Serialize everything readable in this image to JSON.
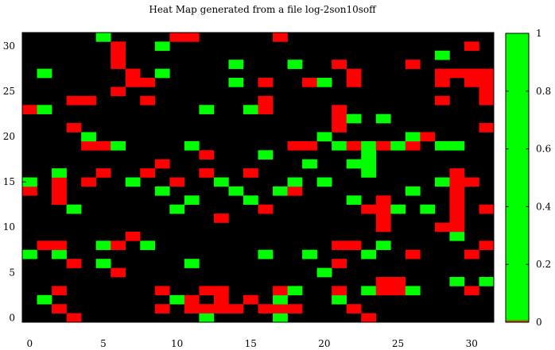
{
  "chart_data": {
    "type": "heatmap",
    "title": "Heat Map generated from a file log-2son10soff",
    "xlabel": "",
    "ylabel": "",
    "x_range": [
      -0.5,
      31.5
    ],
    "y_range": [
      -0.5,
      31.5
    ],
    "x_ticks": [
      0,
      5,
      10,
      15,
      20,
      25,
      30
    ],
    "y_ticks": [
      0,
      5,
      10,
      15,
      20,
      25,
      30
    ],
    "colorbar": {
      "range": [
        0,
        1
      ],
      "ticks": [
        0,
        0.2,
        0.4,
        0.6,
        0.8,
        1
      ],
      "colors": {
        "zero": "#000000",
        "red": "#ff0000",
        "green": "#00ff00"
      }
    },
    "value_legend": {
      "0": "none",
      "1": "red",
      "2": "green"
    },
    "grid": [
      [
        0,
        0,
        0,
        1,
        0,
        0,
        0,
        0,
        0,
        0,
        0,
        0,
        2,
        0,
        0,
        0,
        0,
        2,
        0,
        0,
        0,
        0,
        0,
        1,
        0,
        0,
        0,
        0,
        0,
        0,
        0,
        0
      ],
      [
        0,
        0,
        1,
        0,
        0,
        0,
        0,
        0,
        0,
        1,
        0,
        1,
        1,
        1,
        1,
        0,
        1,
        1,
        1,
        0,
        0,
        0,
        1,
        0,
        0,
        0,
        0,
        0,
        0,
        0,
        0,
        0
      ],
      [
        0,
        2,
        0,
        0,
        0,
        0,
        0,
        0,
        0,
        0,
        2,
        1,
        0,
        1,
        0,
        1,
        0,
        2,
        0,
        0,
        0,
        2,
        0,
        0,
        0,
        0,
        0,
        0,
        0,
        0,
        0,
        0
      ],
      [
        0,
        0,
        1,
        0,
        0,
        0,
        0,
        0,
        0,
        1,
        0,
        0,
        1,
        1,
        0,
        0,
        0,
        1,
        2,
        0,
        0,
        1,
        0,
        2,
        1,
        1,
        2,
        0,
        0,
        0,
        1,
        0
      ],
      [
        0,
        0,
        0,
        0,
        0,
        0,
        0,
        0,
        0,
        0,
        0,
        0,
        0,
        0,
        0,
        0,
        0,
        0,
        0,
        0,
        0,
        0,
        0,
        0,
        1,
        1,
        0,
        0,
        0,
        2,
        0,
        2
      ],
      [
        0,
        0,
        0,
        0,
        0,
        0,
        1,
        0,
        0,
        0,
        0,
        0,
        0,
        0,
        0,
        0,
        0,
        0,
        0,
        0,
        2,
        0,
        0,
        0,
        0,
        0,
        0,
        0,
        0,
        0,
        0,
        0
      ],
      [
        0,
        0,
        0,
        1,
        0,
        2,
        0,
        0,
        0,
        0,
        0,
        2,
        0,
        0,
        0,
        0,
        0,
        0,
        0,
        0,
        0,
        1,
        0,
        0,
        0,
        0,
        0,
        0,
        0,
        0,
        0,
        0
      ],
      [
        2,
        0,
        2,
        0,
        0,
        0,
        0,
        0,
        0,
        0,
        0,
        0,
        0,
        0,
        0,
        0,
        2,
        0,
        0,
        2,
        0,
        0,
        0,
        2,
        0,
        0,
        1,
        0,
        0,
        0,
        1,
        0
      ],
      [
        0,
        1,
        1,
        0,
        0,
        2,
        1,
        0,
        2,
        0,
        0,
        0,
        0,
        0,
        0,
        0,
        0,
        0,
        0,
        0,
        0,
        1,
        1,
        0,
        2,
        0,
        0,
        0,
        0,
        0,
        0,
        1
      ],
      [
        0,
        0,
        0,
        0,
        0,
        0,
        0,
        1,
        0,
        0,
        0,
        0,
        0,
        0,
        0,
        0,
        0,
        0,
        0,
        0,
        0,
        0,
        0,
        0,
        0,
        0,
        0,
        0,
        0,
        2,
        0,
        0
      ],
      [
        0,
        0,
        0,
        0,
        0,
        0,
        0,
        0,
        0,
        0,
        0,
        0,
        0,
        0,
        0,
        0,
        0,
        0,
        0,
        0,
        0,
        0,
        0,
        0,
        1,
        0,
        0,
        0,
        1,
        1,
        0,
        0
      ],
      [
        0,
        0,
        0,
        0,
        0,
        0,
        0,
        0,
        0,
        0,
        0,
        0,
        0,
        1,
        0,
        0,
        0,
        0,
        0,
        0,
        0,
        0,
        0,
        0,
        1,
        0,
        0,
        0,
        0,
        1,
        0,
        0
      ],
      [
        0,
        0,
        0,
        2,
        0,
        0,
        0,
        0,
        0,
        0,
        2,
        0,
        0,
        0,
        0,
        0,
        1,
        0,
        0,
        0,
        0,
        0,
        0,
        1,
        1,
        2,
        0,
        2,
        0,
        1,
        0,
        1
      ],
      [
        0,
        0,
        1,
        0,
        0,
        0,
        0,
        0,
        0,
        0,
        0,
        2,
        0,
        0,
        0,
        2,
        0,
        0,
        0,
        0,
        0,
        0,
        2,
        0,
        1,
        0,
        0,
        0,
        0,
        1,
        0,
        0
      ],
      [
        1,
        0,
        1,
        0,
        0,
        0,
        0,
        0,
        0,
        2,
        0,
        0,
        0,
        0,
        2,
        0,
        0,
        2,
        1,
        0,
        0,
        0,
        0,
        0,
        0,
        0,
        2,
        0,
        0,
        1,
        0,
        0
      ],
      [
        2,
        0,
        1,
        0,
        1,
        0,
        0,
        2,
        0,
        0,
        1,
        0,
        0,
        2,
        0,
        0,
        0,
        0,
        2,
        0,
        2,
        0,
        0,
        0,
        0,
        0,
        0,
        0,
        2,
        1,
        1,
        0
      ],
      [
        0,
        0,
        2,
        0,
        0,
        1,
        0,
        0,
        1,
        0,
        0,
        0,
        1,
        0,
        0,
        1,
        0,
        0,
        0,
        0,
        0,
        0,
        0,
        2,
        0,
        0,
        0,
        0,
        0,
        1,
        0,
        0
      ],
      [
        0,
        0,
        0,
        0,
        0,
        0,
        0,
        0,
        0,
        1,
        0,
        0,
        0,
        0,
        0,
        0,
        0,
        0,
        0,
        2,
        0,
        0,
        2,
        2,
        0,
        0,
        0,
        0,
        0,
        0,
        0,
        0
      ],
      [
        0,
        0,
        0,
        0,
        0,
        0,
        0,
        0,
        0,
        0,
        0,
        0,
        1,
        0,
        0,
        0,
        2,
        0,
        0,
        0,
        0,
        0,
        0,
        2,
        0,
        0,
        0,
        0,
        0,
        0,
        0,
        0
      ],
      [
        0,
        0,
        0,
        0,
        1,
        1,
        2,
        0,
        0,
        0,
        0,
        2,
        0,
        0,
        0,
        0,
        0,
        0,
        1,
        1,
        0,
        2,
        1,
        2,
        1,
        2,
        1,
        0,
        2,
        2,
        0,
        0
      ],
      [
        0,
        0,
        0,
        0,
        2,
        0,
        0,
        0,
        0,
        0,
        0,
        0,
        0,
        0,
        0,
        0,
        0,
        0,
        0,
        0,
        2,
        0,
        0,
        0,
        0,
        0,
        2,
        1,
        0,
        0,
        0,
        0
      ],
      [
        0,
        0,
        0,
        1,
        0,
        0,
        0,
        0,
        0,
        0,
        0,
        0,
        0,
        0,
        0,
        0,
        0,
        0,
        0,
        0,
        0,
        1,
        0,
        0,
        0,
        0,
        0,
        0,
        0,
        0,
        0,
        1
      ],
      [
        0,
        0,
        0,
        0,
        0,
        0,
        0,
        0,
        0,
        0,
        0,
        0,
        0,
        0,
        0,
        0,
        0,
        0,
        0,
        0,
        0,
        1,
        2,
        0,
        2,
        0,
        0,
        0,
        0,
        0,
        0,
        0
      ],
      [
        1,
        2,
        0,
        0,
        0,
        0,
        0,
        0,
        0,
        0,
        0,
        0,
        2,
        0,
        0,
        2,
        1,
        0,
        0,
        0,
        0,
        1,
        0,
        0,
        0,
        0,
        0,
        0,
        0,
        0,
        0,
        0
      ],
      [
        0,
        0,
        0,
        1,
        1,
        0,
        0,
        0,
        1,
        0,
        0,
        0,
        0,
        0,
        0,
        0,
        1,
        0,
        0,
        0,
        0,
        0,
        0,
        0,
        0,
        0,
        0,
        0,
        1,
        0,
        0,
        1
      ],
      [
        0,
        0,
        0,
        0,
        0,
        0,
        1,
        0,
        0,
        0,
        0,
        0,
        0,
        0,
        0,
        0,
        0,
        0,
        0,
        0,
        0,
        0,
        0,
        0,
        0,
        0,
        0,
        0,
        0,
        0,
        0,
        1
      ],
      [
        0,
        0,
        0,
        0,
        0,
        0,
        0,
        1,
        1,
        0,
        0,
        0,
        0,
        0,
        2,
        0,
        1,
        0,
        0,
        1,
        2,
        0,
        1,
        0,
        0,
        0,
        0,
        0,
        1,
        0,
        1,
        1
      ],
      [
        0,
        2,
        0,
        0,
        0,
        0,
        0,
        1,
        0,
        2,
        0,
        0,
        0,
        0,
        0,
        0,
        0,
        0,
        0,
        0,
        0,
        0,
        1,
        0,
        0,
        0,
        0,
        0,
        1,
        1,
        1,
        1
      ],
      [
        0,
        0,
        0,
        0,
        0,
        0,
        1,
        0,
        0,
        0,
        0,
        0,
        0,
        0,
        2,
        0,
        0,
        0,
        2,
        0,
        0,
        1,
        0,
        0,
        0,
        0,
        1,
        0,
        0,
        0,
        0,
        0
      ],
      [
        0,
        0,
        0,
        0,
        0,
        0,
        1,
        0,
        0,
        0,
        0,
        0,
        0,
        0,
        0,
        0,
        0,
        0,
        0,
        0,
        0,
        0,
        0,
        0,
        0,
        0,
        0,
        0,
        2,
        0,
        0,
        0
      ],
      [
        0,
        0,
        0,
        0,
        0,
        0,
        1,
        0,
        0,
        2,
        0,
        0,
        0,
        0,
        0,
        0,
        0,
        0,
        0,
        0,
        0,
        0,
        0,
        0,
        0,
        0,
        0,
        0,
        0,
        0,
        1,
        0
      ],
      [
        0,
        0,
        0,
        0,
        0,
        2,
        0,
        0,
        0,
        0,
        1,
        1,
        0,
        0,
        0,
        0,
        0,
        1,
        0,
        0,
        0,
        0,
        0,
        0,
        0,
        0,
        0,
        0,
        0,
        0,
        0,
        0
      ]
    ]
  }
}
